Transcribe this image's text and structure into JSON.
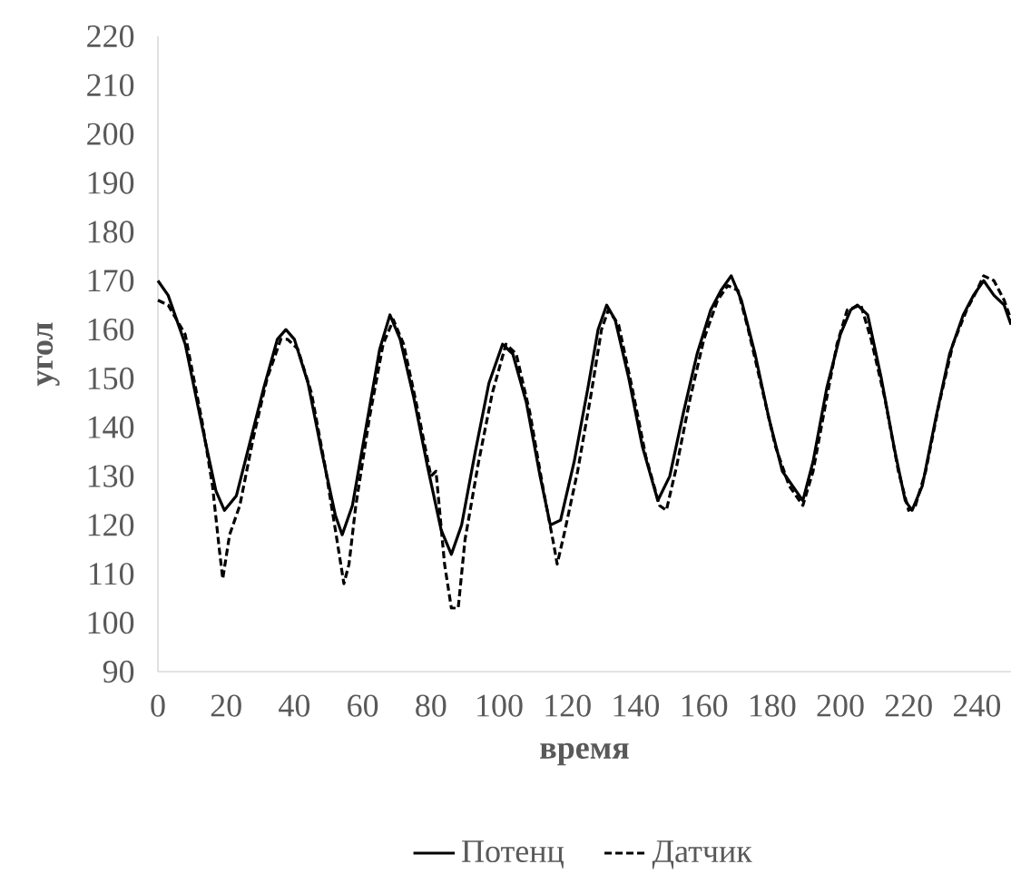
{
  "chart_data": {
    "type": "line",
    "xlabel": "время",
    "ylabel": "угол",
    "xlim": [
      0,
      250
    ],
    "ylim": [
      90,
      220
    ],
    "xticks": [
      0,
      20,
      40,
      60,
      80,
      100,
      120,
      140,
      160,
      180,
      200,
      220,
      240
    ],
    "yticks": [
      90,
      100,
      110,
      120,
      130,
      140,
      150,
      160,
      170,
      180,
      190,
      200,
      210,
      220
    ],
    "grid": false,
    "legend": "bottom",
    "marker": "none",
    "series": [
      {
        "name": "Потенц",
        "color": "#000000",
        "line_style": "solid",
        "x": [
          0,
          3,
          8,
          13,
          17,
          19.5,
          23,
          27,
          31,
          35,
          37.5,
          40,
          44,
          48,
          52,
          54,
          57,
          61,
          65,
          68,
          71,
          75,
          79,
          83,
          86,
          89,
          93,
          97,
          101,
          104,
          108,
          112,
          115,
          118,
          122,
          126,
          129,
          131.5,
          134,
          138,
          142,
          146.5,
          150,
          154,
          158,
          162,
          165,
          168,
          171,
          175,
          179,
          183,
          189,
          192,
          196,
          200,
          203,
          205,
          208,
          212,
          216,
          219,
          221,
          224,
          228,
          232,
          236,
          239,
          242,
          245,
          248,
          250
        ],
        "values": [
          170,
          167,
          157,
          140,
          127,
          123,
          126,
          137,
          148,
          158,
          160,
          158,
          149,
          135,
          122,
          118,
          124,
          140,
          156,
          163,
          158,
          146,
          132,
          119,
          114,
          120,
          135,
          149,
          157,
          155,
          145,
          130,
          120,
          121,
          133,
          148,
          160,
          165,
          162,
          150,
          136,
          125,
          130,
          143,
          155,
          164,
          168,
          171,
          166,
          155,
          142,
          131,
          125,
          133,
          148,
          159,
          164,
          165,
          163,
          150,
          135,
          125,
          123,
          128,
          142,
          155,
          163,
          167,
          170,
          167,
          165,
          161
        ]
      },
      {
        "name": "Датчик",
        "color": "#000000",
        "line_style": "dashed",
        "x": [
          0,
          3,
          8,
          13,
          16,
          18,
          19,
          21,
          24,
          28,
          32,
          36,
          38,
          41,
          45,
          49,
          52,
          54.5,
          56,
          58,
          62,
          66,
          69,
          72,
          76,
          80,
          81.5,
          84,
          86,
          88,
          90,
          94,
          98,
          102,
          105,
          109,
          113,
          116,
          117,
          119,
          123,
          127,
          130,
          132,
          135,
          139,
          143,
          147,
          149,
          152,
          156,
          160,
          164,
          167,
          170,
          173,
          177,
          181,
          185,
          189,
          192,
          196,
          199,
          202,
          206,
          209,
          213,
          217,
          220,
          222,
          225,
          229,
          233,
          237,
          240,
          242,
          245,
          248,
          250
        ],
        "values": [
          166,
          165,
          159,
          141,
          128,
          115,
          109,
          118,
          124,
          138,
          150,
          158,
          158,
          156,
          147,
          132,
          119,
          108,
          112,
          124,
          142,
          157,
          162,
          157,
          144,
          130,
          131,
          112,
          103,
          103,
          117,
          133,
          147,
          157,
          155,
          143,
          127,
          116,
          112,
          118,
          131,
          147,
          160,
          164,
          161,
          148,
          134,
          124,
          123,
          132,
          146,
          158,
          166,
          169,
          168,
          160,
          148,
          136,
          128,
          124,
          131,
          146,
          157,
          164,
          165,
          158,
          146,
          131,
          123,
          124,
          131,
          145,
          157,
          164,
          168,
          171,
          170,
          166,
          162
        ]
      }
    ]
  }
}
